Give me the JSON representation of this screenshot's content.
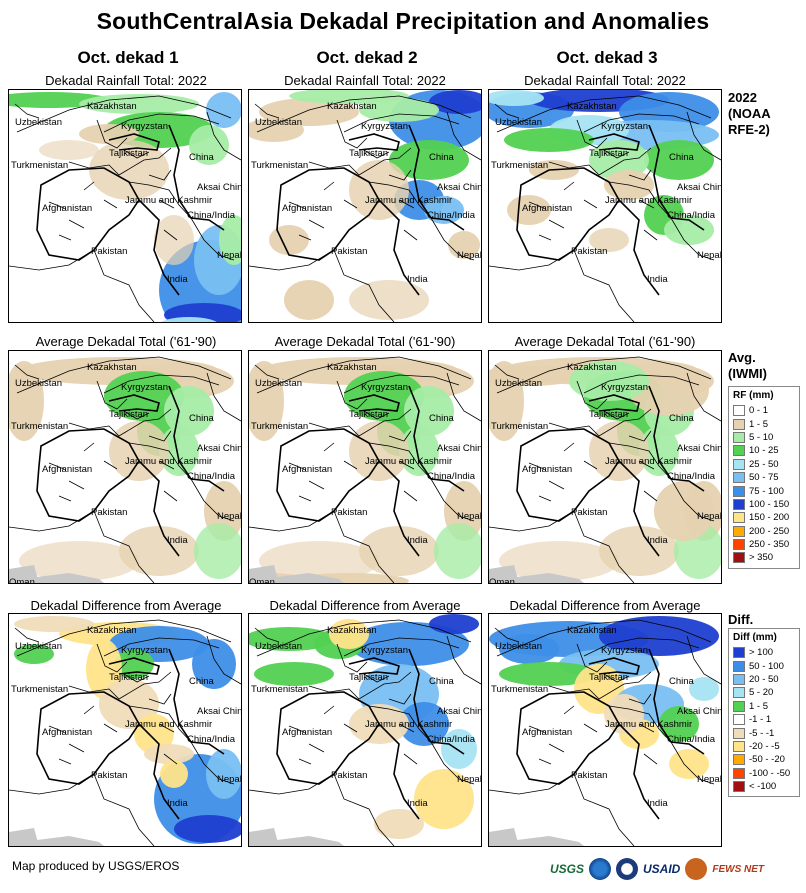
{
  "title": "SouthCentralAsia Dekadal Precipitation and Anomalies",
  "columns": [
    "Oct. dekad 1",
    "Oct. dekad 2",
    "Oct. dekad 3"
  ],
  "rows": [
    {
      "subtitle": "Dekadal Rainfall Total: 2022",
      "label": [
        "2022",
        "(NOAA",
        "RFE-2)"
      ]
    },
    {
      "subtitle": "Average Dekadal Total ('61-'90)",
      "label": [
        "Avg.",
        "(IWMI)"
      ]
    },
    {
      "subtitle": "Dekadal Difference from Average",
      "label": [
        "Diff."
      ]
    }
  ],
  "place_labels": {
    "kazakhstan": "Kazakhstan",
    "uzbekistan": "Uzbekistan",
    "kyrgyzstan": "Kyrgyzstan",
    "turkmenistan": "Turkmenistan",
    "tajikistan": "Tajikistan",
    "china": "China",
    "aksai_chin": "Aksai Chin",
    "jammu_kashmir": "Jammu and Kashmir",
    "china_india": "China/India",
    "afghanistan": "Afghanistan",
    "pakistan": "Pakistan",
    "nepal": "Nepal",
    "india": "India",
    "oman": "Oman"
  },
  "rf_legend": {
    "title": "RF (mm)",
    "items": [
      {
        "label": "0 - 1",
        "color": "#ffffff"
      },
      {
        "label": "1 - 5",
        "color": "#e6d2b0"
      },
      {
        "label": "5 - 10",
        "color": "#a6eca6"
      },
      {
        "label": "10 - 25",
        "color": "#52d152"
      },
      {
        "label": "25 - 50",
        "color": "#a6e4f3"
      },
      {
        "label": "50 - 75",
        "color": "#79bff2"
      },
      {
        "label": "75 - 100",
        "color": "#3d8ee8"
      },
      {
        "label": "100 - 150",
        "color": "#1f3fd0"
      },
      {
        "label": "150 - 200",
        "color": "#ffe48a"
      },
      {
        "label": "200 - 250",
        "color": "#ffaa00"
      },
      {
        "label": "250 - 350",
        "color": "#ff4400"
      },
      {
        "label": "> 350",
        "color": "#a01010"
      }
    ]
  },
  "diff_legend": {
    "title": "Diff (mm)",
    "items": [
      {
        "label": "> 100",
        "color": "#1f3fd0"
      },
      {
        "label": "50 - 100",
        "color": "#3d8ee8"
      },
      {
        "label": "20 - 50",
        "color": "#79bff2"
      },
      {
        "label": "5 - 20",
        "color": "#a6e4f3"
      },
      {
        "label": "1 - 5",
        "color": "#52d152"
      },
      {
        "label": "-1 - 1",
        "color": "#ffffff"
      },
      {
        "label": "-5 - -1",
        "color": "#f0dcb8"
      },
      {
        "label": "-20 - -5",
        "color": "#ffe48a"
      },
      {
        "label": "-50 - -20",
        "color": "#ffaa00"
      },
      {
        "label": "-100 - -50",
        "color": "#ff4400"
      },
      {
        "label": "< -100",
        "color": "#a01010"
      }
    ]
  },
  "footer": "Map produced by USGS/EROS",
  "logos": {
    "usgs": "USGS",
    "usaid": "USAID",
    "fews": "FEWS NET"
  },
  "colors": {
    "land": "#ffffff",
    "ocean_grey": "#c8c8c8",
    "border": "#000000"
  }
}
